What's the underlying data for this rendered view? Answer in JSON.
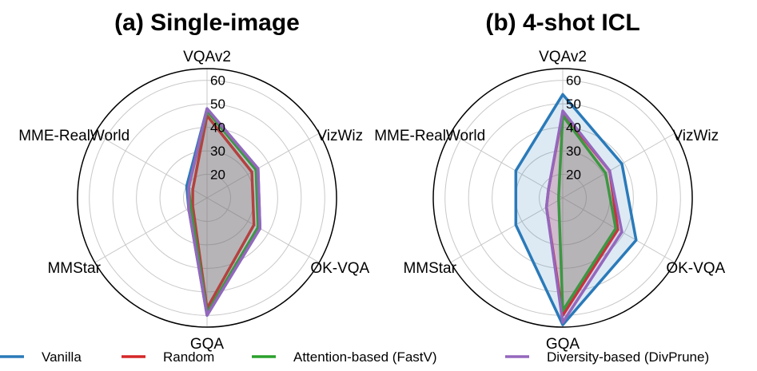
{
  "chart_data": {
    "type": "radar",
    "axes": [
      "VQAv2",
      "VizWiz",
      "OK-VQA",
      "GQA",
      "MMStar",
      "MME-RealWorld"
    ],
    "rlim": [
      10,
      65
    ],
    "rticks": [
      20,
      30,
      40,
      50,
      60
    ],
    "grid": true,
    "legend_position": "bottom",
    "colors": {
      "Vanilla": "#2a7ab9",
      "Random": "#d62728",
      "Attention-based (FastV)": "#2ca02c",
      "Diversity-based (DivPrune)": "#9467bd"
    },
    "panels": [
      {
        "title": "(a) Single-image",
        "series": [
          {
            "name": "Vanilla",
            "values": [
              48,
              35,
              36,
              60,
              19,
              20
            ]
          },
          {
            "name": "Random",
            "values": [
              45,
              32,
              33,
              57,
              17,
              17
            ]
          },
          {
            "name": "Attention-based (FastV)",
            "values": [
              47,
              34,
              35,
              59,
              18,
              19
            ]
          },
          {
            "name": "Diversity-based (DivPrune)",
            "values": [
              48,
              35,
              36,
              60,
              19,
              19
            ]
          }
        ]
      },
      {
        "title": "(b) 4-shot ICL",
        "series": [
          {
            "name": "Vanilla",
            "values": [
              54,
              39,
              46,
              64,
              33,
              33
            ]
          },
          {
            "name": "Random",
            "values": [
              46,
              33,
              37,
              60,
              18,
              17
            ]
          },
          {
            "name": "Attention-based (FastV)",
            "values": [
              45,
              31,
              36,
              58,
              12,
              12
            ]
          },
          {
            "name": "Diversity-based (DivPrune)",
            "values": [
              47,
              33,
              39,
              63,
              18,
              17
            ]
          }
        ]
      }
    ]
  }
}
